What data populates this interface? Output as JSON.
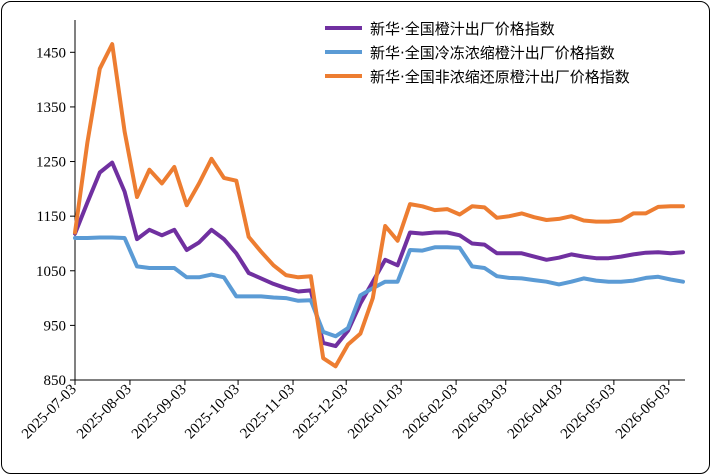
{
  "chart_data": {
    "type": "line",
    "title": "",
    "xlabel": "",
    "ylabel": "",
    "ylim": [
      850,
      1500
    ],
    "yticks": [
      850,
      950,
      1050,
      1150,
      1250,
      1350,
      1450
    ],
    "x_tick_labels": [
      "2025-07-03",
      "2025-08-03",
      "2025-09-03",
      "2025-10-03",
      "2025-11-03",
      "2025-12-03",
      "2026-01-03",
      "2026-02-03",
      "2026-03-03",
      "2026-04-03",
      "2026-05-03",
      "2026-06-03"
    ],
    "x": [
      "2025-07-03",
      "2025-07-10",
      "2025-07-17",
      "2025-07-24",
      "2025-07-31",
      "2025-08-07",
      "2025-08-14",
      "2025-08-21",
      "2025-08-28",
      "2025-09-04",
      "2025-09-11",
      "2025-09-18",
      "2025-09-25",
      "2025-10-02",
      "2025-10-09",
      "2025-10-16",
      "2025-10-23",
      "2025-10-30",
      "2025-11-06",
      "2025-11-13",
      "2025-11-20",
      "2025-11-27",
      "2025-12-04",
      "2025-12-11",
      "2025-12-18",
      "2025-12-25",
      "2026-01-01",
      "2026-01-08",
      "2026-01-15",
      "2026-01-22",
      "2026-01-29",
      "2026-02-05",
      "2026-02-12",
      "2026-02-19",
      "2026-02-26",
      "2026-03-05",
      "2026-03-12",
      "2026-03-19",
      "2026-03-26",
      "2026-04-02",
      "2026-04-09",
      "2026-04-16",
      "2026-04-23",
      "2026-04-30",
      "2026-05-07",
      "2026-05-14",
      "2026-05-21",
      "2026-05-28",
      "2026-06-04",
      "2026-06-11"
    ],
    "grid": false,
    "legend_position": "top-right",
    "series": [
      {
        "name": "新华·全国橙汁出厂价格指数",
        "color": "#7030a0",
        "values": [
          1118,
          1175,
          1230,
          1248,
          1195,
          1108,
          1125,
          1115,
          1125,
          1088,
          1102,
          1125,
          1108,
          1082,
          1046,
          1036,
          1026,
          1018,
          1012,
          1014,
          918,
          912,
          940,
          990,
          1030,
          1070,
          1060,
          1120,
          1118,
          1120,
          1120,
          1115,
          1100,
          1098,
          1082,
          1082,
          1082,
          1076,
          1070,
          1074,
          1080,
          1076,
          1073,
          1073,
          1076,
          1080,
          1083,
          1084,
          1082,
          1084
        ]
      },
      {
        "name": "新华·全国冷冻浓缩橙汁出厂价格指数",
        "color": "#5b9bd5",
        "values": [
          1110,
          1110,
          1111,
          1111,
          1110,
          1058,
          1055,
          1055,
          1055,
          1038,
          1038,
          1043,
          1038,
          1003,
          1003,
          1003,
          1001,
          1000,
          995,
          996,
          938,
          930,
          945,
          1005,
          1018,
          1030,
          1030,
          1088,
          1087,
          1093,
          1093,
          1092,
          1058,
          1055,
          1040,
          1037,
          1036,
          1033,
          1030,
          1025,
          1030,
          1036,
          1032,
          1030,
          1030,
          1032,
          1037,
          1039,
          1034,
          1030
        ]
      },
      {
        "name": "新华·全国非浓缩还原橙汁出厂价格指数",
        "color": "#ed7d31",
        "values": [
          1120,
          1285,
          1420,
          1465,
          1305,
          1185,
          1235,
          1210,
          1240,
          1170,
          1210,
          1255,
          1220,
          1215,
          1112,
          1085,
          1060,
          1042,
          1038,
          1040,
          890,
          875,
          915,
          935,
          1000,
          1132,
          1105,
          1172,
          1168,
          1161,
          1163,
          1153,
          1168,
          1166,
          1147,
          1150,
          1155,
          1148,
          1143,
          1145,
          1150,
          1142,
          1140,
          1140,
          1142,
          1155,
          1155,
          1167,
          1168,
          1168
        ]
      }
    ]
  }
}
